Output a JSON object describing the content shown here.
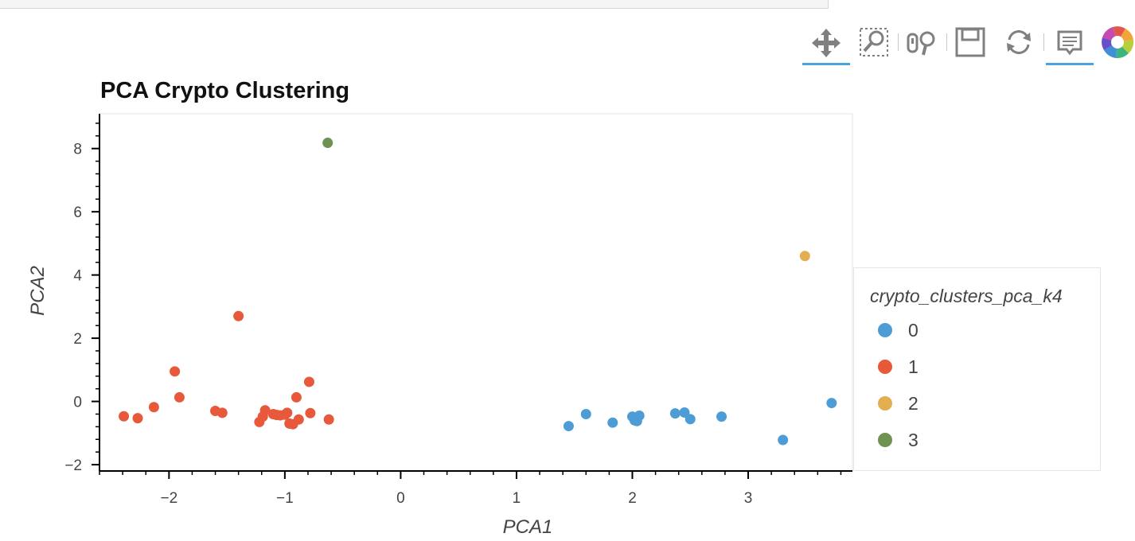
{
  "toolbar": {
    "tools": [
      {
        "name": "pan-tool",
        "icon": "move-icon",
        "active": true
      },
      {
        "name": "box-zoom-tool",
        "icon": "box-zoom-icon",
        "active": false
      },
      {
        "name": "wheel-zoom-tool",
        "icon": "wheel-zoom-icon",
        "active": false
      },
      {
        "name": "save-tool",
        "icon": "save-icon",
        "active": false
      },
      {
        "name": "reset-tool",
        "icon": "reset-icon",
        "active": false
      },
      {
        "name": "hover-tool",
        "icon": "hover-icon",
        "active": true
      },
      {
        "name": "bokeh-logo",
        "icon": "bokeh-logo-icon",
        "active": false
      }
    ],
    "accent_color": "#4aa3df"
  },
  "chart_data": {
    "type": "scatter",
    "title": "PCA Crypto Clustering",
    "xlabel": "PCA1",
    "ylabel": "PCA2",
    "xlim": [
      -2.6,
      3.9
    ],
    "ylim": [
      -2.2,
      9.1
    ],
    "xticks": [
      -2,
      -1,
      0,
      1,
      2,
      3
    ],
    "yticks": [
      -2,
      0,
      2,
      4,
      6,
      8
    ],
    "xtick_labels": [
      "−2",
      "−1",
      "0",
      "1",
      "2",
      "3"
    ],
    "ytick_labels": [
      "−2",
      "0",
      "2",
      "4",
      "6",
      "8"
    ],
    "grid": false,
    "legend": {
      "title": "crypto_clusters_pca_k4",
      "placement": "right"
    },
    "series": [
      {
        "name": "0",
        "color": "#4e9cd5",
        "points": [
          [
            1.45,
            -0.78
          ],
          [
            1.6,
            -0.4
          ],
          [
            1.83,
            -0.67
          ],
          [
            2.0,
            -0.48
          ],
          [
            2.02,
            -0.6
          ],
          [
            2.04,
            -0.62
          ],
          [
            2.06,
            -0.45
          ],
          [
            2.37,
            -0.38
          ],
          [
            2.45,
            -0.35
          ],
          [
            2.5,
            -0.56
          ],
          [
            2.77,
            -0.48
          ],
          [
            3.3,
            -1.22
          ],
          [
            3.72,
            -0.05
          ]
        ]
      },
      {
        "name": "1",
        "color": "#e8583a",
        "points": [
          [
            -2.39,
            -0.47
          ],
          [
            -2.27,
            -0.53
          ],
          [
            -2.13,
            -0.18
          ],
          [
            -1.95,
            0.95
          ],
          [
            -1.91,
            0.13
          ],
          [
            -1.6,
            -0.3
          ],
          [
            -1.54,
            -0.36
          ],
          [
            -1.4,
            2.7
          ],
          [
            -1.22,
            -0.65
          ],
          [
            -1.19,
            -0.48
          ],
          [
            -1.17,
            -0.28
          ],
          [
            -1.1,
            -0.4
          ],
          [
            -1.07,
            -0.43
          ],
          [
            -1.04,
            -0.44
          ],
          [
            -1.0,
            -0.42
          ],
          [
            -0.98,
            -0.36
          ],
          [
            -0.96,
            -0.7
          ],
          [
            -0.93,
            -0.72
          ],
          [
            -0.9,
            0.13
          ],
          [
            -0.88,
            -0.57
          ],
          [
            -0.79,
            0.62
          ],
          [
            -0.78,
            -0.37
          ],
          [
            -0.62,
            -0.57
          ]
        ]
      },
      {
        "name": "2",
        "color": "#e2ae4f",
        "points": [
          [
            3.49,
            4.6
          ]
        ]
      },
      {
        "name": "3",
        "color": "#6f9253",
        "points": [
          [
            -0.63,
            8.18
          ]
        ]
      }
    ]
  }
}
